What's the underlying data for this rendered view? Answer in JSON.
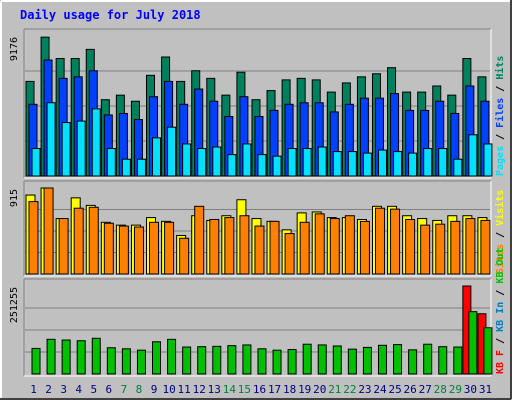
{
  "chart_data": {
    "type": "bar",
    "title": "Daily usage for July 2018",
    "categories": [
      "1",
      "2",
      "3",
      "4",
      "5",
      "6",
      "7",
      "8",
      "9",
      "10",
      "11",
      "12",
      "13",
      "14",
      "15",
      "16",
      "17",
      "18",
      "19",
      "20",
      "21",
      "22",
      "23",
      "24",
      "25",
      "26",
      "27",
      "28",
      "29",
      "30",
      "31"
    ],
    "weekend_days": [
      "7",
      "8",
      "14",
      "15",
      "21",
      "22",
      "28",
      "29"
    ],
    "grid": true,
    "panels": [
      {
        "id": "hits-files-pages",
        "ylabel_max": "9176",
        "ylim": [
          0,
          9176
        ],
        "series": [
          {
            "name": "Hits",
            "color": "#00805c",
            "values": [
              6200,
              9100,
              7700,
              7700,
              8300,
              5000,
              5300,
              4900,
              6600,
              7800,
              6200,
              6900,
              6400,
              5300,
              6800,
              5000,
              5600,
              6300,
              6400,
              6300,
              5500,
              6100,
              6500,
              6700,
              7100,
              5500,
              5500,
              5900,
              5300,
              7700,
              6500
            ]
          },
          {
            "name": "Files",
            "color": "#0040ff",
            "values": [
              4700,
              7600,
              6400,
              6500,
              6900,
              4000,
              4100,
              3700,
              5200,
              6200,
              4700,
              5700,
              4900,
              3900,
              5200,
              3900,
              4300,
              4700,
              4800,
              4800,
              4200,
              4700,
              5100,
              5100,
              5400,
              4300,
              4300,
              4900,
              4100,
              5900,
              4900
            ]
          },
          {
            "name": "Pages",
            "color": "#00e0ff",
            "values": [
              1800,
              4800,
              3500,
              3600,
              4400,
              1800,
              1100,
              1100,
              2500,
              3200,
              2100,
              1800,
              1900,
              1400,
              2100,
              1400,
              1300,
              1800,
              1800,
              1900,
              1600,
              1600,
              1500,
              1700,
              1600,
              1500,
              1800,
              1800,
              1100,
              2700,
              2100
            ]
          }
        ]
      },
      {
        "id": "visits-sites",
        "ylabel_max": "915",
        "ylim": [
          0,
          915
        ],
        "series": [
          {
            "name": "Visits",
            "color": "#ffff00",
            "values": [
              840,
              915,
              590,
              810,
              730,
              550,
              520,
              520,
              600,
              560,
              410,
              620,
              570,
              620,
              790,
              590,
              560,
              470,
              650,
              660,
              600,
              600,
              580,
              720,
              720,
              620,
              590,
              570,
              620,
              620,
              600
            ]
          },
          {
            "name": "Sites",
            "color": "#ff8000",
            "values": [
              770,
              915,
              590,
              700,
              710,
              540,
              510,
              500,
              550,
              550,
              380,
              720,
              580,
              600,
              620,
              510,
              560,
              430,
              550,
              640,
              590,
              620,
              560,
              700,
              690,
              580,
              520,
              530,
              560,
              590,
              570
            ]
          }
        ]
      },
      {
        "id": "kb-in-out",
        "ylabel_max": "251255",
        "ylim": [
          0,
          251255
        ],
        "series": [
          {
            "name": "KB F",
            "color": "#ff0000",
            "values": [
              0,
              0,
              0,
              0,
              0,
              0,
              0,
              0,
              0,
              0,
              0,
              0,
              0,
              0,
              0,
              0,
              0,
              0,
              0,
              0,
              0,
              0,
              0,
              0,
              0,
              0,
              0,
              0,
              0,
              251255,
              172000
            ]
          },
          {
            "name": "KB In",
            "color": "#0080c0",
            "values": [
              0,
              0,
              0,
              0,
              0,
              0,
              0,
              0,
              0,
              0,
              0,
              0,
              0,
              0,
              0,
              0,
              0,
              0,
              0,
              0,
              0,
              0,
              0,
              0,
              0,
              0,
              0,
              0,
              0,
              0,
              0
            ]
          },
          {
            "name": "KB Out",
            "color": "#00c000",
            "values": [
              73000,
              99000,
              97000,
              95000,
              102000,
              75000,
              72000,
              68000,
              92000,
              99000,
              77000,
              78000,
              79000,
              81000,
              83000,
              72000,
              68000,
              70000,
              85000,
              83000,
              80000,
              71000,
              76000,
              82000,
              84000,
              69000,
              85000,
              78000,
              77000,
              178000,
              132000
            ]
          }
        ]
      }
    ]
  },
  "legend": {
    "panel1": [
      {
        "text": "Pages",
        "color": "#00e0ff"
      },
      {
        "text": " / ",
        "color": "#000000"
      },
      {
        "text": "Files",
        "color": "#0040ff"
      },
      {
        "text": " / ",
        "color": "#000000"
      },
      {
        "text": "Hits",
        "color": "#00805c"
      }
    ],
    "panel2": [
      {
        "text": "Sites",
        "color": "#ff8000"
      },
      {
        "text": " / ",
        "color": "#000000"
      },
      {
        "text": "Visits",
        "color": "#ffff00"
      }
    ],
    "panel3": [
      {
        "text": "KB F",
        "color": "#ff0000"
      },
      {
        "text": " / ",
        "color": "#000000"
      },
      {
        "text": "KB In",
        "color": "#0080c0"
      },
      {
        "text": " / ",
        "color": "#000000"
      },
      {
        "text": "KB Out",
        "color": "#00c000"
      }
    ]
  },
  "colors": {
    "background": "#c0c0c0",
    "title": "#0000ff",
    "weekday_label": "#000080",
    "weekend_label": "#008040"
  }
}
